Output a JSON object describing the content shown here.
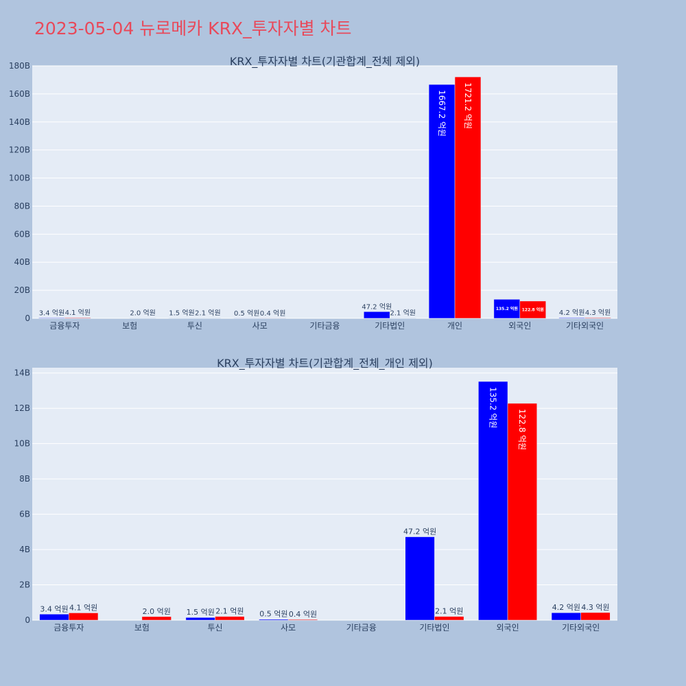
{
  "page": {
    "title": "2023-05-04 뉴로메카 KRX_투자자별 차트",
    "title_color": "#e8495a",
    "background": "#b0c4de",
    "plot_background": "#e5ecf6"
  },
  "chart_data": [
    {
      "type": "bar",
      "title": "KRX_투자자별 차트(기관합계_전체 제외)",
      "categories": [
        "금융투자",
        "보험",
        "투신",
        "사모",
        "기타금융",
        "기타법인",
        "개인",
        "외국인",
        "기타외국인"
      ],
      "ylim": [
        0,
        180
      ],
      "ytick_values": [
        0,
        20,
        40,
        60,
        80,
        100,
        120,
        140,
        160,
        180
      ],
      "ytick_labels": [
        "0",
        "20B",
        "40B",
        "60B",
        "80B",
        "100B",
        "120B",
        "140B",
        "160B",
        "180B"
      ],
      "grid": true,
      "series": [
        {
          "color": "#0000ff",
          "values": [
            0.34,
            0,
            0.15,
            0.05,
            0,
            4.72,
            166.72,
            13.52,
            0.42
          ],
          "labels": [
            "3.4 억원",
            "",
            "1.5 억원",
            "0.5 억원",
            "",
            "47.2 억원",
            "1667.2 억원",
            "135.2 억원",
            "4.2 억원"
          ]
        },
        {
          "color": "#ff0000",
          "values": [
            0.41,
            0.2,
            0.21,
            0.04,
            0,
            0.21,
            172.12,
            12.28,
            0.43
          ],
          "labels": [
            "4.1 억원",
            "2.0 억원",
            "2.1 억원",
            "0.4 억원",
            "",
            "2.1 억원",
            "1721.2 억원",
            "122.8 억원",
            "4.3 억원"
          ]
        }
      ]
    },
    {
      "type": "bar",
      "title": "KRX_투자자별 차트(기관합계_전체_개인 제외)",
      "categories": [
        "금융투자",
        "보험",
        "투신",
        "사모",
        "기타금융",
        "기타법인",
        "외국인",
        "기타외국인"
      ],
      "ylim": [
        0,
        14.3
      ],
      "ytick_values": [
        0,
        2,
        4,
        6,
        8,
        10,
        12,
        14
      ],
      "ytick_labels": [
        "0",
        "2B",
        "4B",
        "6B",
        "8B",
        "10B",
        "12B",
        "14B"
      ],
      "grid": true,
      "series": [
        {
          "color": "#0000ff",
          "values": [
            0.34,
            0,
            0.15,
            0.05,
            0,
            4.72,
            13.52,
            0.42
          ],
          "labels": [
            "3.4 억원",
            "",
            "1.5 억원",
            "0.5 억원",
            "",
            "47.2 억원",
            "135.2 억원",
            "4.2 억원"
          ]
        },
        {
          "color": "#ff0000",
          "values": [
            0.41,
            0.2,
            0.21,
            0.04,
            0,
            0.21,
            12.28,
            0.43
          ],
          "labels": [
            "4.1 억원",
            "2.0 억원",
            "2.1 억원",
            "0.4 억원",
            "",
            "2.1 억원",
            "122.8 억원",
            "4.3 억원"
          ]
        }
      ]
    }
  ]
}
